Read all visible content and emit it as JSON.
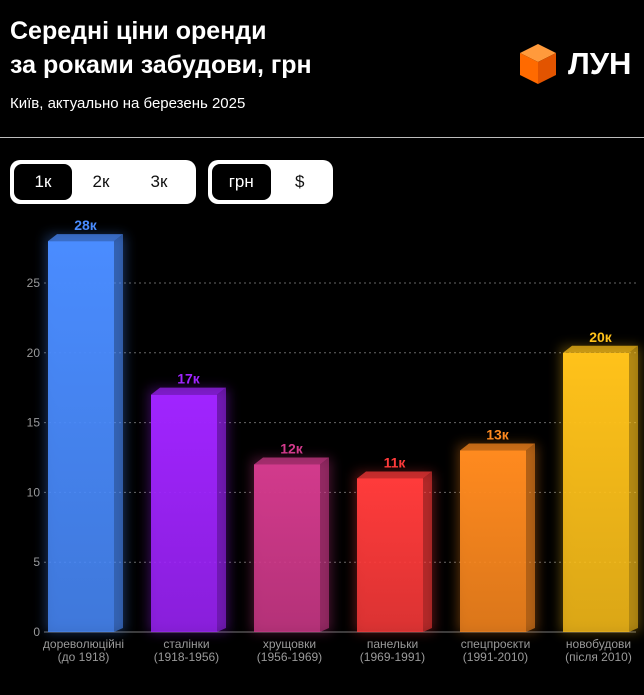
{
  "header": {
    "title_line1": "Середні ціни оренди",
    "title_line2": "за роками забудови, грн",
    "subtitle": "Київ, актуально на березень 2025"
  },
  "logo": {
    "text": "ЛУН",
    "icon": "orange-cube-icon",
    "color": "#ff6a00"
  },
  "room_filter": {
    "options": [
      "1к",
      "2к",
      "3к"
    ],
    "selected": "1к"
  },
  "currency_filter": {
    "options": [
      "грн",
      "$"
    ],
    "selected": "грн"
  },
  "chart_data": {
    "type": "bar",
    "title": "Середні ціни оренди за роками забудови, грн",
    "subtitle": "Київ, актуально на березень 2025",
    "categories": [
      [
        "дореволюційні",
        "(до 1918)"
      ],
      [
        "сталінки",
        "(1918-1956)"
      ],
      [
        "хрущовки",
        "(1956-1969)"
      ],
      [
        "панельки",
        "(1969-1991)"
      ],
      [
        "спецпроєкти",
        "(1991-2010)"
      ],
      [
        "новобудови",
        "(після 2010)"
      ]
    ],
    "values": [
      28,
      17,
      12,
      11,
      13,
      20
    ],
    "value_labels": [
      "28к",
      "17к",
      "12к",
      "11к",
      "13к",
      "20к"
    ],
    "colors": [
      "#4a8cff",
      "#a024ff",
      "#d23a8c",
      "#ff3b3b",
      "#ff8a1f",
      "#ffc21a"
    ],
    "ylim": [
      0,
      30
    ],
    "yticks": [
      0,
      5,
      10,
      15,
      20,
      25
    ],
    "xlabel": "",
    "ylabel": "",
    "grid": true,
    "legend": "none"
  }
}
